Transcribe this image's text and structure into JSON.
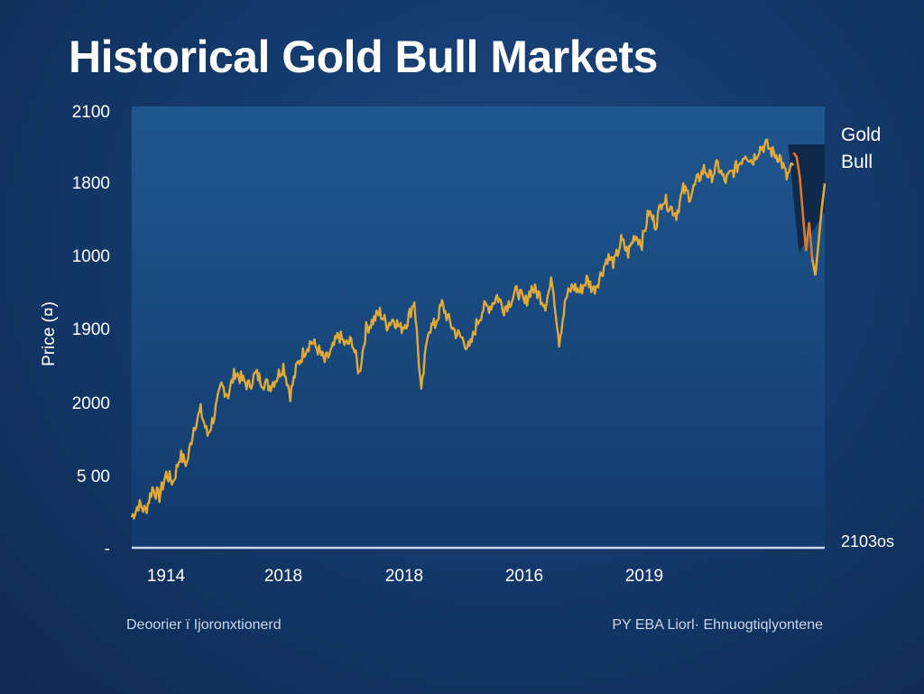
{
  "title": "Historical Gold Bull Markets",
  "ylabel": "Price (¤)",
  "legend": [
    "Gold",
    "Bull"
  ],
  "footnote_left": "Deoorier ï Ijoronxtionerd",
  "footnote_right": "PY EBA Liorl· Ehnuogtiqlyontene",
  "colors": {
    "line": "#e0a93a",
    "bull_line": "#e0782a",
    "plot_top": "#1f578f",
    "plot_bottom": "#123a6c",
    "baseline": "#cfd8e6",
    "bull_shade": "#0d2240"
  },
  "chart_data": {
    "type": "line",
    "title": "Historical Gold Bull Markets",
    "ylabel": "Price (¤)",
    "y_tick_labels": [
      "2100",
      "1800",
      "1000",
      "1900",
      "2000",
      "5 00",
      "-"
    ],
    "x_tick_labels": [
      "1914",
      "2018",
      "2018",
      "2016",
      "2019"
    ],
    "x_end_label": "2103os",
    "ylim": [
      0,
      2100
    ],
    "grid": false,
    "legend_position": "right",
    "x": [
      0,
      1,
      2,
      3,
      4,
      5,
      6,
      7,
      8,
      9,
      10,
      11,
      12,
      13,
      14,
      15,
      16,
      17,
      18,
      19,
      20,
      21,
      22,
      23,
      24,
      25,
      26,
      27,
      28,
      29,
      30,
      31,
      32,
      33,
      34,
      35,
      36,
      37,
      38,
      39,
      40,
      41,
      42,
      43,
      44,
      45,
      46,
      47,
      48,
      49,
      50,
      51,
      52,
      53,
      54,
      55,
      56,
      57,
      58,
      59,
      60,
      61,
      62,
      63,
      64,
      65,
      66,
      67,
      68,
      69,
      70,
      71,
      72,
      73,
      74,
      75,
      76,
      77,
      78,
      79,
      80,
      81,
      82,
      83,
      84,
      85,
      86,
      87,
      88,
      89,
      90,
      91,
      92,
      93,
      94,
      95,
      96
    ],
    "series": [
      {
        "values": [
          120,
          180,
          150,
          260,
          220,
          330,
          290,
          420,
          380,
          560,
          640,
          520,
          620,
          760,
          720,
          830,
          790,
          760,
          820,
          780,
          760,
          800,
          860,
          720,
          860,
          930,
          980,
          940,
          880,
          930,
          1010,
          960,
          980,
          820,
          1040,
          1080,
          1120,
          1060,
          1090,
          1040,
          1080,
          1180,
          720,
          1040,
          1060,
          1160,
          1080,
          1020,
          990,
          940,
          1060,
          1140,
          1150,
          1200,
          1140,
          1180,
          1230,
          1160,
          1240,
          1210,
          1160,
          1280,
          980,
          1190,
          1250,
          1220,
          1280,
          1230,
          1300,
          1390,
          1360,
          1470,
          1410,
          1500,
          1460,
          1610,
          1550,
          1680,
          1640,
          1600,
          1720,
          1690,
          1760,
          1820,
          1780,
          1840,
          1760,
          1800,
          1840,
          1900,
          1860,
          1920,
          1940,
          1900,
          1880,
          1780,
          1840
        ],
        "bull_values": [
          1900,
          1880,
          1780,
          1600,
          1420,
          1560,
          1380,
          1300,
          1460,
          1620,
          1750
        ]
      }
    ]
  }
}
